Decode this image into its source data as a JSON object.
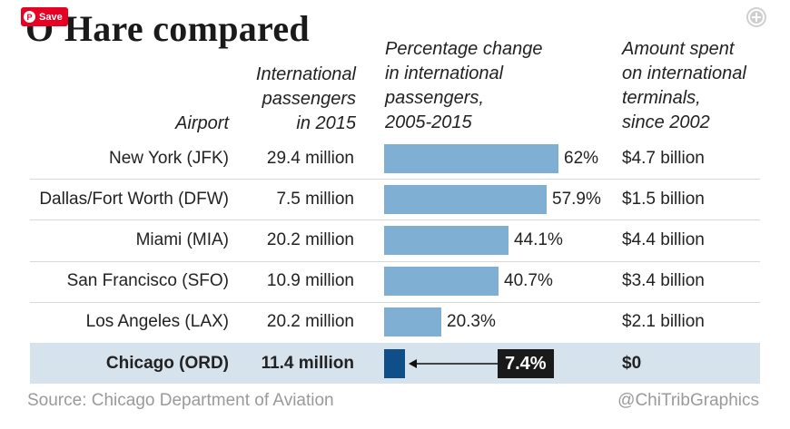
{
  "title": "O'Hare compared",
  "pinterest": {
    "save_label": "Save",
    "icon": "pinterest-icon"
  },
  "colors": {
    "bar": "#7fb0d4",
    "highlight_bar": "#0e4f8a",
    "highlight_row": "#d6e2ec",
    "label_box": "#1a1a1a"
  },
  "headers": {
    "airport": "Airport",
    "passengers": "International\npassengers\nin 2015",
    "pct_change": "Percentage change\nin international\npassengers,\n2005-2015",
    "amount": "Amount spent\non international\nterminals,\nsince 2002"
  },
  "rows": [
    {
      "airport": "New York (JFK)",
      "passengers": "29.4 million",
      "pct_label": "62%",
      "amount": "$4.7 billion"
    },
    {
      "airport": "Dallas/Fort Worth (DFW)",
      "passengers": "7.5 million",
      "pct_label": "57.9%",
      "amount": "$1.5 billion"
    },
    {
      "airport": "Miami (MIA)",
      "passengers": "20.2 million",
      "pct_label": "44.1%",
      "amount": "$4.4 billion"
    },
    {
      "airport": "San Francisco (SFO)",
      "passengers": "10.9 million",
      "pct_label": "40.7%",
      "amount": "$3.4 billion"
    },
    {
      "airport": "Los Angeles (LAX)",
      "passengers": "20.2 million",
      "pct_label": "20.3%",
      "amount": "$2.1 billion"
    },
    {
      "airport": "Chicago (ORD)",
      "passengers": "11.4 million",
      "pct_label": "7.4%",
      "amount": "$0"
    }
  ],
  "chart_data": {
    "type": "bar",
    "orientation": "horizontal",
    "title": "Percentage change in international passengers, 2005-2015",
    "categories": [
      "New York (JFK)",
      "Dallas/Fort Worth (DFW)",
      "Miami (MIA)",
      "San Francisco (SFO)",
      "Los Angeles (LAX)",
      "Chicago (ORD)"
    ],
    "values": [
      62,
      57.9,
      44.1,
      40.7,
      20.3,
      7.4
    ],
    "unit": "%",
    "highlight": "Chicago (ORD)",
    "xlim": [
      0,
      62
    ],
    "grid": false
  },
  "footer": {
    "source": "Source: Chicago Department of Aviation",
    "credit": "@ChiTribGraphics"
  }
}
